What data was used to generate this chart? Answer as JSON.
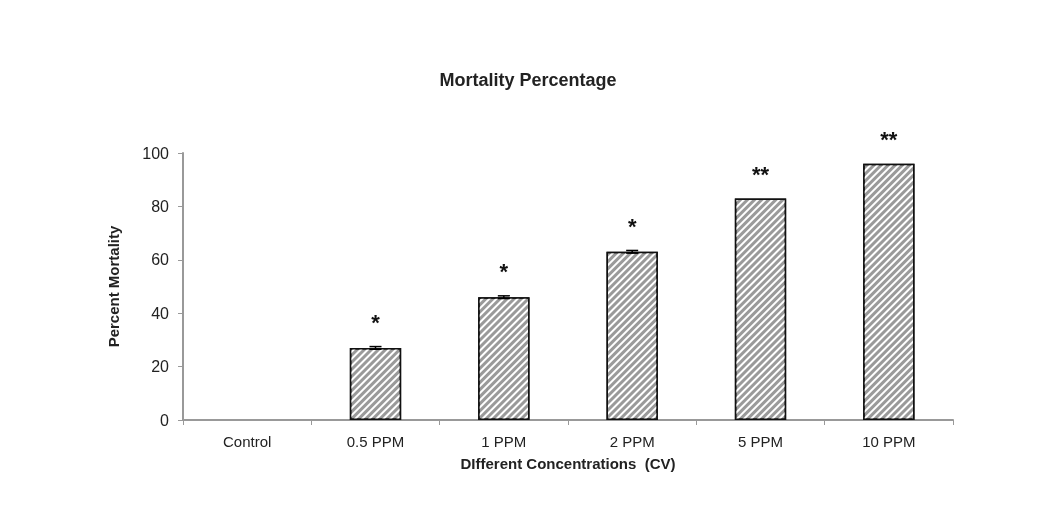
{
  "chart_data": {
    "type": "bar",
    "title": "Mortality Percentage",
    "xlabel": "DIfferent Concentrations  (CV)",
    "ylabel": "Percent Mortality",
    "categories": [
      "Control",
      "0.5 PPM",
      "1 PPM",
      "2 PPM",
      "5 PPM",
      "10 PPM"
    ],
    "values": [
      0,
      27,
      46,
      63,
      83,
      96
    ],
    "errors": [
      null,
      0.5,
      0.5,
      0.5,
      null,
      null
    ],
    "color": "#9a9a9a",
    "ylim": [
      0,
      100
    ],
    "yticks": [
      0,
      20,
      40,
      60,
      80,
      100
    ],
    "grid": false,
    "annotations": [
      "*",
      "*",
      "*",
      "**",
      "**"
    ]
  }
}
